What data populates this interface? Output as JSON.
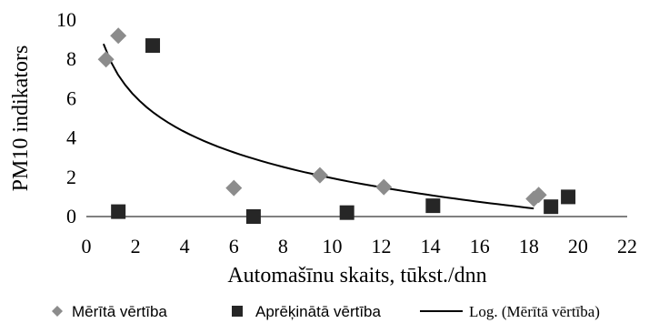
{
  "chart_data": {
    "type": "scatter",
    "title": "",
    "xlabel": "Automašīnu skaits, tūkst./dnn",
    "ylabel": "PM10 indikators",
    "xlim": [
      0,
      22
    ],
    "ylim": [
      0,
      10
    ],
    "xticks": [
      0,
      2,
      4,
      6,
      8,
      10,
      12,
      14,
      16,
      18,
      20,
      22
    ],
    "yticks": [
      0,
      2,
      4,
      6,
      8,
      10
    ],
    "grid": false,
    "legend_position": "bottom",
    "series": [
      {
        "name": "Mērītā vērtība",
        "marker": "diamond",
        "color": "#8c8c8c",
        "points": [
          {
            "x": 0.8,
            "y": 8.0
          },
          {
            "x": 1.3,
            "y": 9.2
          },
          {
            "x": 6.0,
            "y": 1.45
          },
          {
            "x": 9.5,
            "y": 2.1
          },
          {
            "x": 12.1,
            "y": 1.5
          },
          {
            "x": 18.2,
            "y": 0.9
          },
          {
            "x": 18.4,
            "y": 1.1
          }
        ]
      },
      {
        "name": "Aprēķinātā vērtība",
        "marker": "square",
        "color": "#262626",
        "points": [
          {
            "x": 1.3,
            "y": 0.25
          },
          {
            "x": 2.7,
            "y": 8.7
          },
          {
            "x": 6.8,
            "y": 0.0
          },
          {
            "x": 10.6,
            "y": 0.2
          },
          {
            "x": 14.1,
            "y": 0.55
          },
          {
            "x": 18.9,
            "y": 0.5
          },
          {
            "x": 19.6,
            "y": 1.0
          }
        ]
      },
      {
        "name": "Log. (Mērītā vērtība)",
        "type": "line",
        "color": "#000000",
        "trend": "logarithmic",
        "x_range": [
          0.7,
          18.2
        ],
        "a": -2.57,
        "b": 7.87
      }
    ]
  }
}
